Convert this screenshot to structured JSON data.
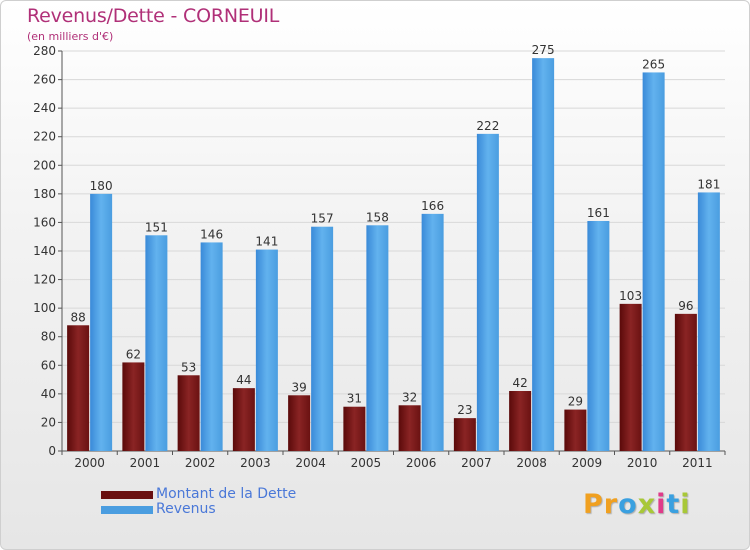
{
  "header": {
    "title": "Revenus/Dette - CORNEUIL",
    "subtitle": "(en milliers d'€)"
  },
  "legend": {
    "items": [
      {
        "label": "Montant de la Dette",
        "color": "#7a1a1a"
      },
      {
        "label": "Revenus",
        "color": "#4a9de0"
      }
    ]
  },
  "logo": {
    "letters": [
      "P",
      "r",
      "o",
      "x",
      "i",
      "t",
      "i"
    ],
    "colors": [
      "#f0a020",
      "#f0a020",
      "#3aa0e0",
      "#a8c838",
      "#e03a8a",
      "#3aa0e0",
      "#a8c838"
    ]
  },
  "chart_data": {
    "type": "bar",
    "categories": [
      "2000",
      "2001",
      "2002",
      "2003",
      "2004",
      "2005",
      "2006",
      "2007",
      "2008",
      "2009",
      "2010",
      "2011"
    ],
    "series": [
      {
        "name": "Montant de la Dette",
        "values": [
          88,
          62,
          53,
          44,
          39,
          31,
          32,
          23,
          42,
          29,
          103,
          96
        ],
        "color": "#7a1a1a"
      },
      {
        "name": "Revenus",
        "values": [
          180,
          151,
          146,
          141,
          157,
          158,
          166,
          222,
          275,
          161,
          265,
          181
        ],
        "color": "#4a9de0"
      }
    ],
    "ylim": [
      0,
      280
    ],
    "yticks": [
      0,
      20,
      40,
      60,
      80,
      100,
      120,
      140,
      160,
      180,
      200,
      220,
      240,
      260,
      280
    ],
    "grid": true,
    "legend": "bottom-left"
  }
}
